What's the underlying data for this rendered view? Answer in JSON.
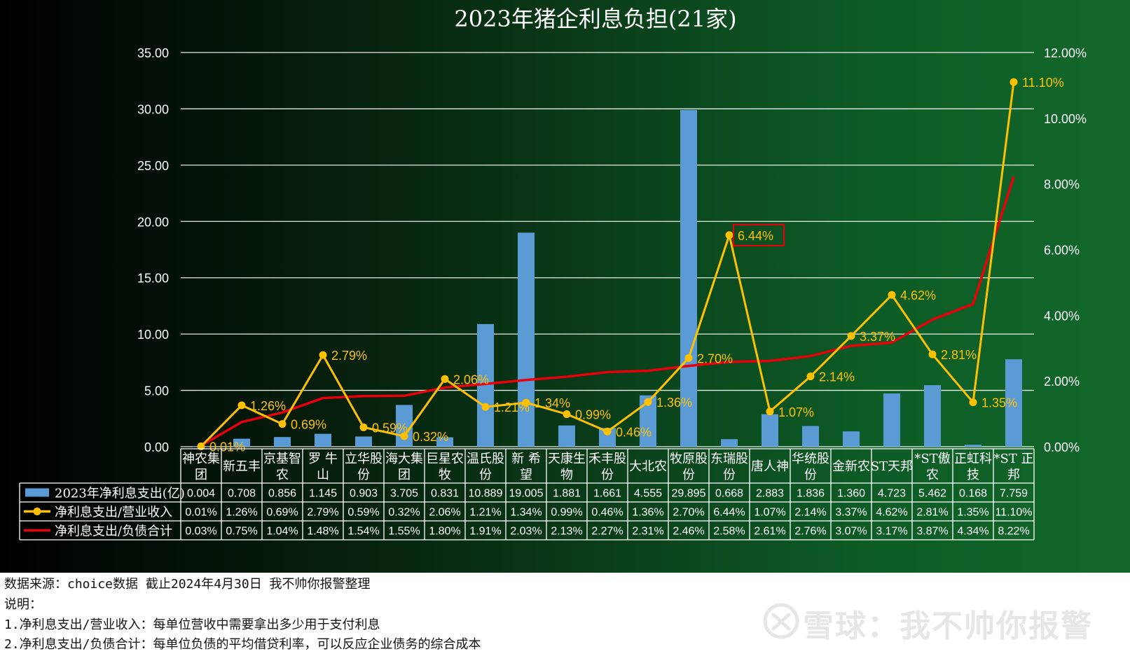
{
  "chart_data": {
    "type": "bar",
    "title": "2023年猪企利息负担(21家)",
    "categories": [
      [
        "神农集",
        "团"
      ],
      [
        "新五丰"
      ],
      [
        "京基智",
        "农"
      ],
      [
        "罗 牛",
        "山"
      ],
      [
        "立华股",
        "份"
      ],
      [
        "海大集",
        "团"
      ],
      [
        "巨星农",
        "牧"
      ],
      [
        "温氏股",
        "份"
      ],
      [
        "新 希",
        "望"
      ],
      [
        "天康生",
        "物"
      ],
      [
        "禾丰股",
        "份"
      ],
      [
        "大北农"
      ],
      [
        "牧原股",
        "份"
      ],
      [
        "东瑞股",
        "份"
      ],
      [
        "唐人神"
      ],
      [
        "华统股",
        "份"
      ],
      [
        "金新农"
      ],
      [
        "ST天邦"
      ],
      [
        "*ST傲",
        "农"
      ],
      [
        "正虹科",
        "技"
      ],
      [
        "*ST 正",
        "邦"
      ]
    ],
    "series": [
      {
        "name": "2023年净利息支出(亿)",
        "type": "bar",
        "axis": "left",
        "color": "#5b9bd5",
        "values": [
          0.004,
          0.708,
          0.856,
          1.145,
          0.903,
          3.705,
          0.831,
          10.889,
          19.005,
          1.881,
          1.661,
          4.555,
          29.895,
          0.668,
          2.883,
          1.836,
          1.36,
          4.723,
          5.462,
          0.168,
          7.759
        ],
        "table_values": [
          "0.004",
          "0.708",
          "0.856",
          "1.145",
          "0.903",
          "3.705",
          "0.831",
          "10.889",
          "19.005",
          "1.881",
          "1.661",
          "4.555",
          "29.895",
          "0.668",
          "2.883",
          "1.836",
          "1.360",
          "4.723",
          "5.462",
          "0.168",
          "7.759"
        ]
      },
      {
        "name": "净利息支出/营业收入",
        "type": "line",
        "axis": "right",
        "color": "#ffc000",
        "marker": true,
        "values": [
          0.01,
          1.26,
          0.69,
          2.79,
          0.59,
          0.32,
          2.06,
          1.21,
          1.34,
          0.99,
          0.46,
          1.36,
          2.7,
          6.44,
          1.07,
          2.14,
          3.37,
          4.62,
          2.81,
          1.35,
          11.1
        ],
        "labels": [
          "0.01%",
          "1.26%",
          "0.69%",
          "2.79%",
          "0.59%",
          "0.32%",
          "2.06%",
          "1.21%",
          "1.34%",
          "0.99%",
          "0.46%",
          "1.36%",
          "2.70%",
          "6.44%",
          "1.07%",
          "2.14%",
          "3.37%",
          "4.62%",
          "2.81%",
          "1.35%",
          "11.10%"
        ],
        "highlight_index": 13
      },
      {
        "name": "净利息支出/负债合计",
        "type": "line",
        "axis": "right",
        "color": "#e8000b",
        "marker": false,
        "values": [
          0.03,
          0.75,
          1.04,
          1.48,
          1.54,
          1.55,
          1.8,
          1.91,
          2.03,
          2.13,
          2.27,
          2.31,
          2.46,
          2.58,
          2.61,
          2.76,
          3.07,
          3.17,
          3.87,
          4.34,
          8.22
        ],
        "labels": [
          "0.03%",
          "0.75%",
          "1.04%",
          "1.48%",
          "1.54%",
          "1.55%",
          "1.80%",
          "1.91%",
          "2.03%",
          "2.13%",
          "2.27%",
          "2.31%",
          "2.46%",
          "2.58%",
          "2.61%",
          "2.76%",
          "3.07%",
          "3.17%",
          "3.87%",
          "4.34%",
          "8.22%"
        ]
      }
    ],
    "y_left": {
      "min": 0,
      "max": 35,
      "step": 5,
      "tick_labels": [
        "0.00",
        "5.00",
        "10.00",
        "15.00",
        "20.00",
        "25.00",
        "30.00",
        "35.00"
      ]
    },
    "y_right": {
      "min": 0,
      "max": 12,
      "step": 2,
      "tick_labels": [
        "0.00%",
        "2.00%",
        "4.00%",
        "6.00%",
        "8.00%",
        "10.00%",
        "12.00%"
      ]
    },
    "grid": true,
    "legend": "data-table",
    "colors": {
      "background_start": "#000000",
      "background_end": "#12682b",
      "gridline": "#ffffff",
      "highlight_box": "#e8000b"
    }
  },
  "footer": {
    "source": "数据来源：choice数据 截止2024年4月30日 我不帅你报警整理",
    "note_title": "说明：",
    "note_1": "1.净利息支出/营业收入：每单位营收中需要拿出多少用于支付利息",
    "note_2": "2.净利息支出/负债合计：每单位负债的平均借贷利率，可以反应企业债务的综合成本"
  },
  "watermark": {
    "text": "雪球：我不帅你报警",
    "logo_icon": "xueqiu-logo-icon"
  }
}
